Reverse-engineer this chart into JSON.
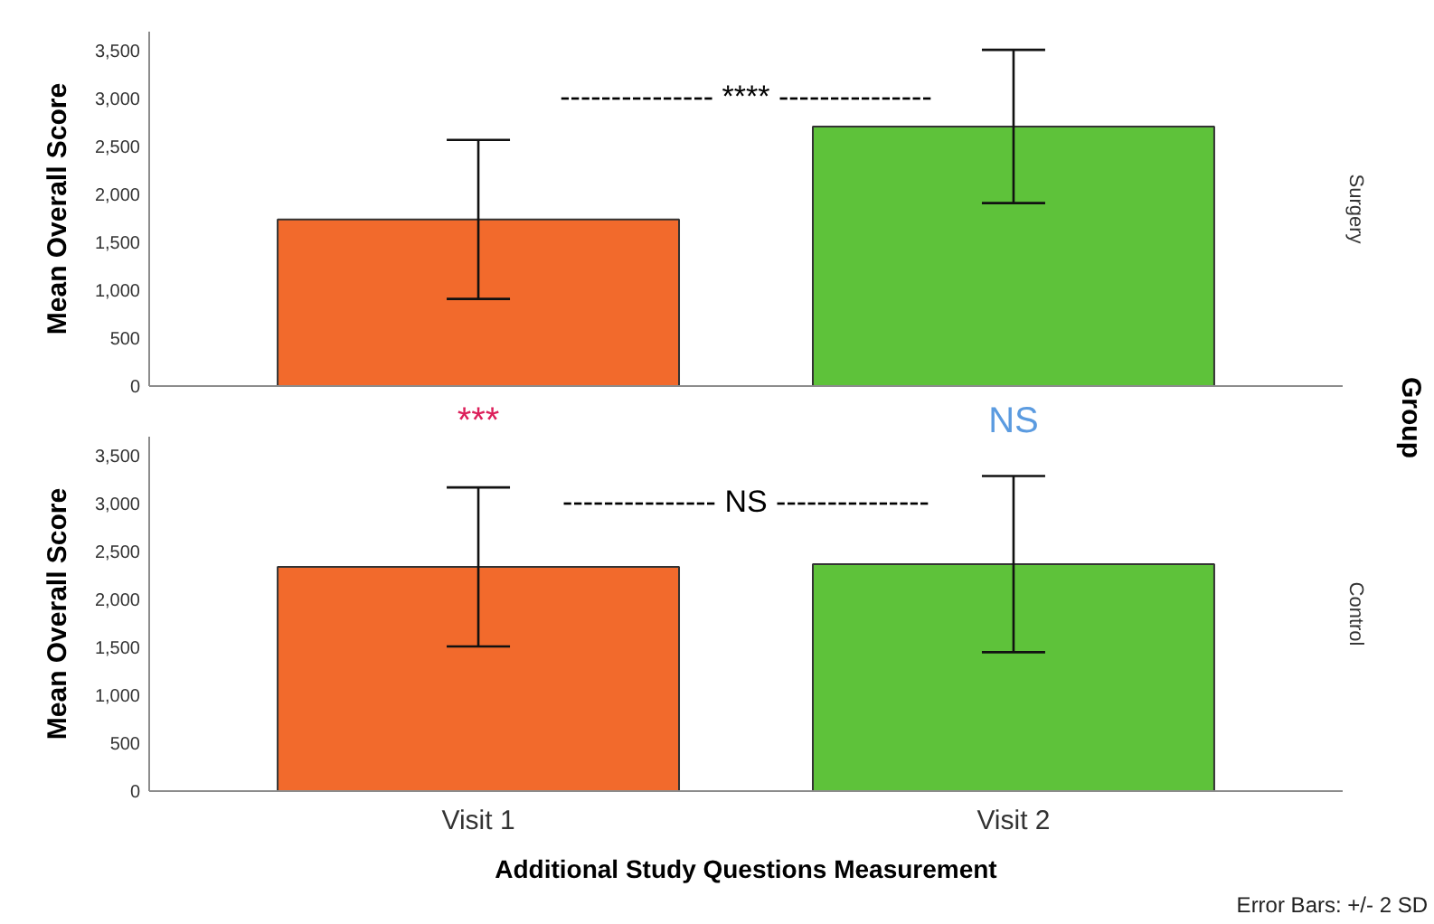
{
  "chart_data": [
    {
      "type": "bar",
      "title": "Surgery",
      "ylabel": "Mean Overall Score",
      "categories": [
        null,
        null
      ],
      "values": [
        1740,
        2710
      ],
      "colors": [
        "#f26a2c",
        "#5ec23a"
      ],
      "errors": [
        830,
        800
      ],
      "ylim": [
        0,
        3700
      ],
      "yticks": [
        {
          "value": 0,
          "label": "0"
        },
        {
          "value": 500,
          "label": "500"
        },
        {
          "value": 1000,
          "label": "1,000"
        },
        {
          "value": 1500,
          "label": "1,500"
        },
        {
          "value": 2000,
          "label": "2,000"
        },
        {
          "value": 2500,
          "label": "2,500"
        },
        {
          "value": 3000,
          "label": "3,000"
        },
        {
          "value": 3500,
          "label": "3,500"
        }
      ],
      "annotations": [
        "--------------- **** ---------------",
        "Group"
      ]
    },
    {
      "type": "bar",
      "title": "Control",
      "xlabel": "Additional Study Questions Measurement",
      "ylabel": "Mean Overall Score",
      "categories": [
        "Visit 1",
        "Visit 2"
      ],
      "values": [
        2340,
        2370
      ],
      "colors": [
        "#f26a2c",
        "#5ec23a"
      ],
      "errors": [
        830,
        920
      ],
      "ylim": [
        0,
        3700
      ],
      "yticks": [
        {
          "value": 0,
          "label": "0"
        },
        {
          "value": 500,
          "label": "500"
        },
        {
          "value": 1000,
          "label": "1,000"
        },
        {
          "value": 1500,
          "label": "1,500"
        },
        {
          "value": 2000,
          "label": "2,000"
        },
        {
          "value": 2500,
          "label": "2,500"
        },
        {
          "value": 3000,
          "label": "3,000"
        },
        {
          "value": 3500,
          "label": "3,500"
        }
      ],
      "annotations": [
        "--------------- NS ---------------",
        "***",
        "NS",
        "Error Bars: +/- 2 SD"
      ]
    }
  ]
}
